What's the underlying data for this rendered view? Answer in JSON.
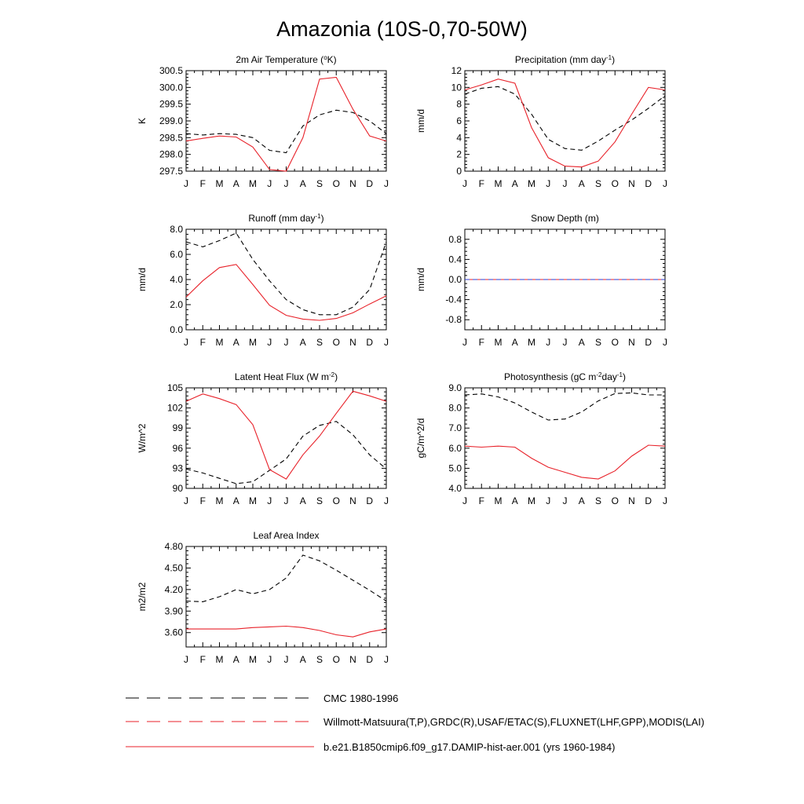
{
  "figure_title": "Amazonia (10S-0,70-50W)",
  "colors": {
    "model": "#e8222a",
    "obs_cmc": "#000000",
    "obs_willmott": "#e8222a",
    "obs_willmott_alt": "#2e3fd0"
  },
  "legend": [
    {
      "label": "CMC 1980-1996",
      "style": "dashed",
      "color": "#000000"
    },
    {
      "label": "Willmott-Matsuura(T,P),GRDC(R),USAF/ETAC(S),FLUXNET(LHF,GPP),MODIS(LAI)",
      "style": "dashed",
      "color": "#e8222a"
    },
    {
      "label": "b.e21.B1850cmip6.f09_g17.DAMIP-hist-aer.001 (yrs 1960-1984)",
      "style": "solid",
      "color": "#e8222a"
    }
  ],
  "chart_data": [
    {
      "type": "line",
      "title": "2m Air Temperature (",
      "title_sup": "o",
      "title_tail": "K)",
      "ylabel": "K",
      "categories": [
        "J",
        "F",
        "M",
        "A",
        "M",
        "J",
        "J",
        "A",
        "S",
        "O",
        "N",
        "D",
        "J"
      ],
      "ylim": [
        297.5,
        300.5
      ],
      "yticks": [
        297.5,
        298.0,
        298.5,
        299.0,
        299.5,
        300.0,
        300.5
      ],
      "ytick_labels": [
        "297.5",
        "298.0",
        "298.5",
        "299.0",
        "299.5",
        "300.0",
        "300.5"
      ],
      "series": [
        {
          "style": "dashed",
          "color": "#000000",
          "values": [
            298.62,
            298.58,
            298.62,
            298.6,
            298.5,
            298.12,
            298.05,
            298.85,
            299.18,
            299.32,
            299.25,
            299.0,
            298.62
          ]
        },
        {
          "style": "solid",
          "color": "#e8222a",
          "values": [
            298.4,
            298.48,
            298.55,
            298.52,
            298.22,
            297.55,
            297.5,
            298.5,
            300.25,
            300.3,
            299.35,
            298.55,
            298.4
          ]
        }
      ]
    },
    {
      "type": "line",
      "title": "Precipitation (mm day",
      "title_sup": "-1",
      "title_tail": ")",
      "ylabel": "mm/d",
      "categories": [
        "J",
        "F",
        "M",
        "A",
        "M",
        "J",
        "J",
        "A",
        "S",
        "O",
        "N",
        "D",
        "J"
      ],
      "ylim": [
        0,
        12
      ],
      "yticks": [
        0,
        2,
        4,
        6,
        8,
        10,
        12
      ],
      "ytick_labels": [
        "0",
        "2",
        "4",
        "6",
        "8",
        "10",
        "12"
      ],
      "series": [
        {
          "style": "dashed",
          "color": "#000000",
          "values": [
            9.2,
            9.9,
            10.1,
            9.2,
            6.8,
            3.8,
            2.7,
            2.5,
            3.6,
            4.9,
            6.1,
            7.5,
            9.0
          ]
        },
        {
          "style": "solid",
          "color": "#e8222a",
          "values": [
            9.7,
            10.3,
            11.0,
            10.5,
            5.2,
            1.6,
            0.6,
            0.5,
            1.2,
            3.5,
            6.8,
            10.0,
            9.7
          ]
        }
      ]
    },
    {
      "type": "line",
      "title": "Runoff (mm day",
      "title_sup": "-1",
      "title_tail": ")",
      "ylabel": "mm/d",
      "categories": [
        "J",
        "F",
        "M",
        "A",
        "M",
        "J",
        "J",
        "A",
        "S",
        "O",
        "N",
        "D",
        "J"
      ],
      "ylim": [
        0,
        8
      ],
      "yticks": [
        0,
        2,
        4,
        6,
        8
      ],
      "ytick_labels": [
        "0.0",
        "2.0",
        "4.0",
        "6.0",
        "8.0"
      ],
      "series": [
        {
          "style": "dashed",
          "color": "#000000",
          "values": [
            7.0,
            6.6,
            7.1,
            7.7,
            5.6,
            3.9,
            2.4,
            1.6,
            1.2,
            1.2,
            1.8,
            3.2,
            7.0
          ]
        },
        {
          "style": "solid",
          "color": "#e8222a",
          "values": [
            2.6,
            3.9,
            4.95,
            5.2,
            3.6,
            1.95,
            1.15,
            0.85,
            0.75,
            0.9,
            1.35,
            2.05,
            2.7
          ]
        }
      ]
    },
    {
      "type": "line",
      "title": "Snow Depth (m)",
      "title_sup": "",
      "title_tail": "",
      "ylabel": "mm/d",
      "categories": [
        "J",
        "F",
        "M",
        "A",
        "M",
        "J",
        "J",
        "A",
        "S",
        "O",
        "N",
        "D",
        "J"
      ],
      "ylim": [
        -1.0,
        1.0
      ],
      "yticks": [
        -0.8,
        -0.4,
        0.0,
        0.4,
        0.8
      ],
      "ytick_labels": [
        "-0.8",
        "-0.4",
        "0.0",
        "0.4",
        "0.8"
      ],
      "series": [
        {
          "style": "solid",
          "color": "#e8222a",
          "values": [
            0,
            0,
            0,
            0,
            0,
            0,
            0,
            0,
            0,
            0,
            0,
            0,
            0
          ]
        },
        {
          "style": "dashed",
          "color": "#2e3fd0",
          "values": [
            0,
            0,
            0,
            0,
            0,
            0,
            0,
            0,
            0,
            0,
            0,
            0,
            0
          ]
        }
      ]
    },
    {
      "type": "line",
      "title": "Latent Heat Flux (W m",
      "title_sup": "-2",
      "title_tail": ")",
      "ylabel": "W/m^2",
      "categories": [
        "J",
        "F",
        "M",
        "A",
        "M",
        "J",
        "J",
        "A",
        "S",
        "O",
        "N",
        "D",
        "J"
      ],
      "ylim": [
        90,
        105
      ],
      "yticks": [
        90,
        93,
        96,
        99,
        102,
        105
      ],
      "ytick_labels": [
        "90",
        "93",
        "96",
        "99",
        "102",
        "105"
      ],
      "series": [
        {
          "style": "dashed",
          "color": "#000000",
          "values": [
            92.9,
            92.3,
            91.5,
            90.7,
            91.0,
            92.7,
            94.4,
            97.8,
            99.4,
            100.0,
            98.0,
            95.0,
            92.9
          ]
        },
        {
          "style": "solid",
          "color": "#e8222a",
          "values": [
            103.0,
            104.1,
            103.4,
            102.5,
            99.5,
            92.8,
            91.4,
            95.0,
            97.8,
            101.2,
            104.5,
            103.8,
            103.0
          ]
        }
      ]
    },
    {
      "type": "line",
      "title": "Photosynthesis (gC m",
      "title_sup": "-2",
      "title_tail": "day",
      "title_sup2": "-1",
      "title_tail2": ")",
      "ylabel": "gC/m^2/d",
      "categories": [
        "J",
        "F",
        "M",
        "A",
        "M",
        "J",
        "J",
        "A",
        "S",
        "O",
        "N",
        "D",
        "J"
      ],
      "ylim": [
        4.0,
        9.0
      ],
      "yticks": [
        4.0,
        5.0,
        6.0,
        7.0,
        8.0,
        9.0
      ],
      "ytick_labels": [
        "4.0",
        "5.0",
        "6.0",
        "7.0",
        "8.0",
        "9.0"
      ],
      "series": [
        {
          "style": "dashed",
          "color": "#000000",
          "values": [
            8.65,
            8.7,
            8.55,
            8.25,
            7.8,
            7.4,
            7.45,
            7.8,
            8.35,
            8.72,
            8.75,
            8.65,
            8.65
          ]
        },
        {
          "style": "solid",
          "color": "#e8222a",
          "values": [
            6.1,
            6.05,
            6.1,
            6.05,
            5.5,
            5.05,
            4.8,
            4.55,
            4.47,
            4.87,
            5.6,
            6.15,
            6.1
          ]
        }
      ]
    },
    {
      "type": "line",
      "title": "Leaf Area Index",
      "title_sup": "",
      "title_tail": "",
      "ylabel": "m2/m2",
      "categories": [
        "J",
        "F",
        "M",
        "A",
        "M",
        "J",
        "J",
        "A",
        "S",
        "O",
        "N",
        "D",
        "J"
      ],
      "ylim": [
        3.4,
        4.8
      ],
      "yticks": [
        3.6,
        3.9,
        4.2,
        4.5,
        4.8
      ],
      "ytick_labels": [
        "3.60",
        "3.90",
        "4.20",
        "4.50",
        "4.80"
      ],
      "series": [
        {
          "style": "dashed",
          "color": "#000000",
          "values": [
            4.04,
            4.03,
            4.1,
            4.2,
            4.14,
            4.2,
            4.36,
            4.68,
            4.6,
            4.47,
            4.33,
            4.19,
            4.04
          ]
        },
        {
          "style": "solid",
          "color": "#e8222a",
          "values": [
            3.65,
            3.65,
            3.65,
            3.65,
            3.67,
            3.68,
            3.69,
            3.67,
            3.63,
            3.57,
            3.54,
            3.61,
            3.65
          ]
        }
      ]
    }
  ]
}
